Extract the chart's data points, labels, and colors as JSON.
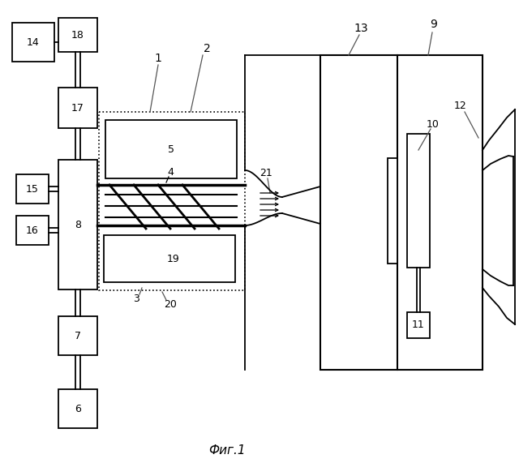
{
  "title": "Фиг.1",
  "bg": "#ffffff",
  "lc": "#1a1a1a",
  "fig_w": 6.4,
  "fig_h": 5.87,
  "dpi": 100
}
